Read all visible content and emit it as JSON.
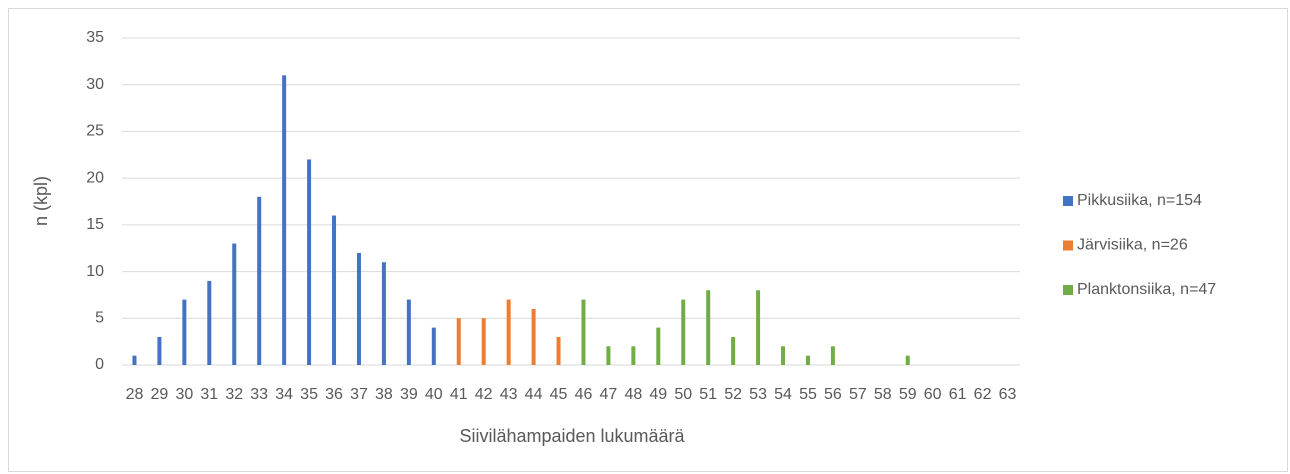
{
  "chart_data": {
    "type": "bar",
    "x_label": "Siivilähampaiden lukumäärä",
    "y_label": "n (kpl)",
    "categories": [
      28,
      29,
      30,
      31,
      32,
      33,
      34,
      35,
      36,
      37,
      38,
      39,
      40,
      41,
      42,
      43,
      44,
      45,
      46,
      47,
      48,
      49,
      50,
      51,
      52,
      53,
      54,
      55,
      56,
      57,
      58,
      59,
      60,
      61,
      62,
      63
    ],
    "series": [
      {
        "name": "Pikkusiika, n=154",
        "color": "#4472c4",
        "values": [
          1,
          3,
          7,
          9,
          13,
          18,
          31,
          22,
          16,
          12,
          11,
          7,
          4,
          null,
          null,
          null,
          null,
          null,
          null,
          null,
          null,
          null,
          null,
          null,
          null,
          null,
          null,
          null,
          null,
          null,
          null,
          null,
          null,
          null,
          null,
          null
        ]
      },
      {
        "name": "Järvisiika, n=26",
        "color": "#ed7d31",
        "values": [
          null,
          null,
          null,
          null,
          null,
          null,
          null,
          null,
          null,
          null,
          null,
          null,
          null,
          5,
          5,
          7,
          6,
          3,
          null,
          null,
          null,
          null,
          null,
          null,
          null,
          null,
          null,
          null,
          null,
          null,
          null,
          null,
          null,
          null,
          null,
          null
        ]
      },
      {
        "name": "Planktonsiika, n=47",
        "color": "#70ad47",
        "values": [
          null,
          null,
          null,
          null,
          null,
          null,
          null,
          null,
          null,
          null,
          null,
          null,
          null,
          null,
          null,
          null,
          null,
          null,
          7,
          2,
          2,
          4,
          7,
          8,
          3,
          8,
          2,
          1,
          2,
          null,
          null,
          1,
          null,
          null,
          null,
          null
        ]
      }
    ],
    "ylim": [
      0,
      35
    ],
    "yticks": [
      0,
      5,
      10,
      15,
      20,
      25,
      30,
      35
    ],
    "grid": true,
    "legend": "right"
  }
}
